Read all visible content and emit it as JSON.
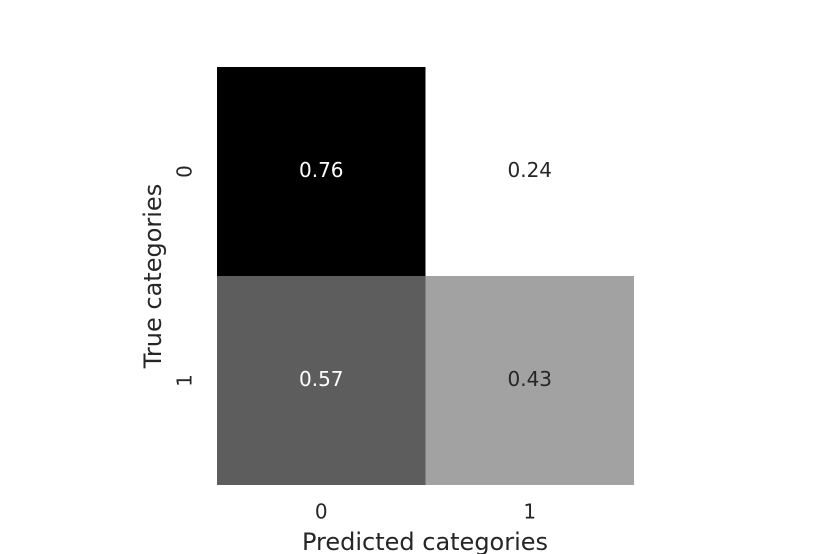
{
  "chart_data": {
    "type": "heatmap",
    "x_label": "Predicted categories",
    "y_label": "True categories",
    "x_categories": [
      "0",
      "1"
    ],
    "y_categories": [
      "0",
      "1"
    ],
    "values": [
      [
        0.76,
        0.24
      ],
      [
        0.57,
        0.43
      ]
    ],
    "colors": [
      "#ffffff",
      "#000000"
    ]
  }
}
